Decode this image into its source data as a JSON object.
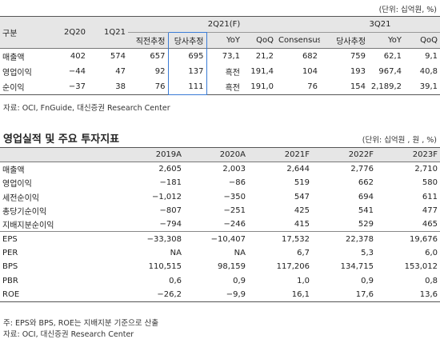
{
  "table1": {
    "unit": "(단위: 십억원, %)",
    "header": {
      "first": "구분",
      "cols": [
        "2Q20",
        "1Q21"
      ],
      "groups": [
        {
          "label": "2Q21(F)",
          "cols": [
            "직전추정",
            "당사추정",
            "YoY",
            "QoQ",
            "Consensus"
          ]
        },
        {
          "label": "3Q21",
          "cols": [
            "당사추정",
            "YoY",
            "QoQ"
          ]
        }
      ]
    },
    "rows": [
      [
        "매출액",
        "402",
        "574",
        "657",
        "695",
        "73,1",
        "21,2",
        "682",
        "759",
        "62,1",
        "9,1"
      ],
      [
        "영업이익",
        "−44",
        "47",
        "92",
        "137",
        "흑전",
        "191,4",
        "104",
        "193",
        "967,4",
        "40,8"
      ],
      [
        "순이익",
        "−37",
        "38",
        "76",
        "111",
        "흑전",
        "191,0",
        "76",
        "154",
        "2,189,2",
        "39,1"
      ]
    ],
    "source": "자료: OCI, FnGuide, 대신증권 Research Center"
  },
  "table2": {
    "title": "영업실적 및 주요 투자지표",
    "unit": "(단위: 십억원 , 원 , %)",
    "header": [
      "2019A",
      "2020A",
      "2021F",
      "2022F",
      "2023F"
    ],
    "rows": [
      [
        "매출액",
        "2,605",
        "2,003",
        "2,644",
        "2,776",
        "2,710"
      ],
      [
        "영업이익",
        "−181",
        "−86",
        "519",
        "662",
        "580"
      ],
      [
        "세전순이익",
        "−1,012",
        "−350",
        "547",
        "694",
        "611"
      ],
      [
        "총당기순이익",
        "−807",
        "−251",
        "425",
        "541",
        "477"
      ],
      [
        "지배지분순이익",
        "−794",
        "−246",
        "415",
        "529",
        "465"
      ],
      [
        "EPS",
        "−33,308",
        "−10,407",
        "17,532",
        "22,378",
        "19,676"
      ],
      [
        "PER",
        "NA",
        "NA",
        "6,7",
        "5,3",
        "6,0"
      ],
      [
        "BPS",
        "110,515",
        "98,159",
        "117,206",
        "134,715",
        "153,012"
      ],
      [
        "PBR",
        "0,6",
        "0,9",
        "1,0",
        "0,9",
        "0,8"
      ],
      [
        "ROE",
        "−26,2",
        "−9,9",
        "16,1",
        "17,6",
        "13,6"
      ]
    ],
    "notes": [
      "주: EPS와 BPS, ROE는 지배지분 기준으로 산출",
      "자료: OCI, 대신증권 Research Center"
    ]
  }
}
